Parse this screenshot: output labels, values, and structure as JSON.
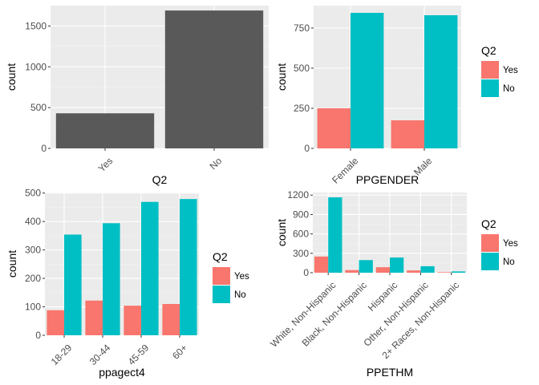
{
  "colors": {
    "panel": "#EBEBEB",
    "grid_major": "#FFFFFF",
    "grid_minor": "#F4F4F4",
    "tick_text": "#4D4D4D",
    "tick_line": "#333333",
    "yes": "#F8766D",
    "no": "#00BFC4",
    "single": "#595959"
  },
  "legend": {
    "title": "Q2",
    "items": [
      {
        "label": "Yes",
        "color": "#F8766D"
      },
      {
        "label": "No",
        "color": "#00BFC4"
      }
    ]
  },
  "chart_data": [
    {
      "type": "bar",
      "xlabel": "Q2",
      "ylabel": "count",
      "categories": [
        "Yes",
        "No"
      ],
      "series": [
        {
          "values": [
            430,
            1690
          ],
          "color": "#595959"
        }
      ],
      "ylim": [
        0,
        1750
      ],
      "yticks": [
        0,
        500,
        1000,
        1500
      ],
      "legend": false
    },
    {
      "type": "bar",
      "xlabel": "PPGENDER",
      "ylabel": "count",
      "categories": [
        "Female",
        "Male"
      ],
      "series": [
        {
          "name": "Yes",
          "values": [
            250,
            175
          ],
          "color": "#F8766D"
        },
        {
          "name": "No",
          "values": [
            845,
            830
          ],
          "color": "#00BFC4"
        }
      ],
      "ylim": [
        0,
        890
      ],
      "yticks": [
        0,
        250,
        500,
        750
      ],
      "legend": true
    },
    {
      "type": "bar",
      "xlabel": "ppagect4",
      "ylabel": "count",
      "categories": [
        "18-29",
        "30-44",
        "45-59",
        "60+"
      ],
      "series": [
        {
          "name": "Yes",
          "values": [
            88,
            122,
            104,
            110
          ],
          "color": "#F8766D"
        },
        {
          "name": "No",
          "values": [
            354,
            394,
            469,
            479
          ],
          "color": "#00BFC4"
        }
      ],
      "ylim": [
        0,
        502
      ],
      "yticks": [
        0,
        100,
        200,
        300,
        400,
        500
      ],
      "legend": true
    },
    {
      "type": "bar",
      "xlabel": "PPETHM",
      "ylabel": "count",
      "categories": [
        "White, Non-Hispanic",
        "Black, Non-Hispanic",
        "Hispanic",
        "Other, Non-Hispanic",
        "2+ Races, Non-Hispanic"
      ],
      "series": [
        {
          "name": "Yes",
          "values": [
            250,
            40,
            85,
            35,
            8
          ],
          "color": "#F8766D"
        },
        {
          "name": "No",
          "values": [
            1165,
            195,
            235,
            100,
            20
          ],
          "color": "#00BFC4"
        }
      ],
      "ylim": [
        0,
        1240
      ],
      "yticks": [
        0,
        300,
        600,
        900,
        1200
      ],
      "legend": true
    }
  ]
}
